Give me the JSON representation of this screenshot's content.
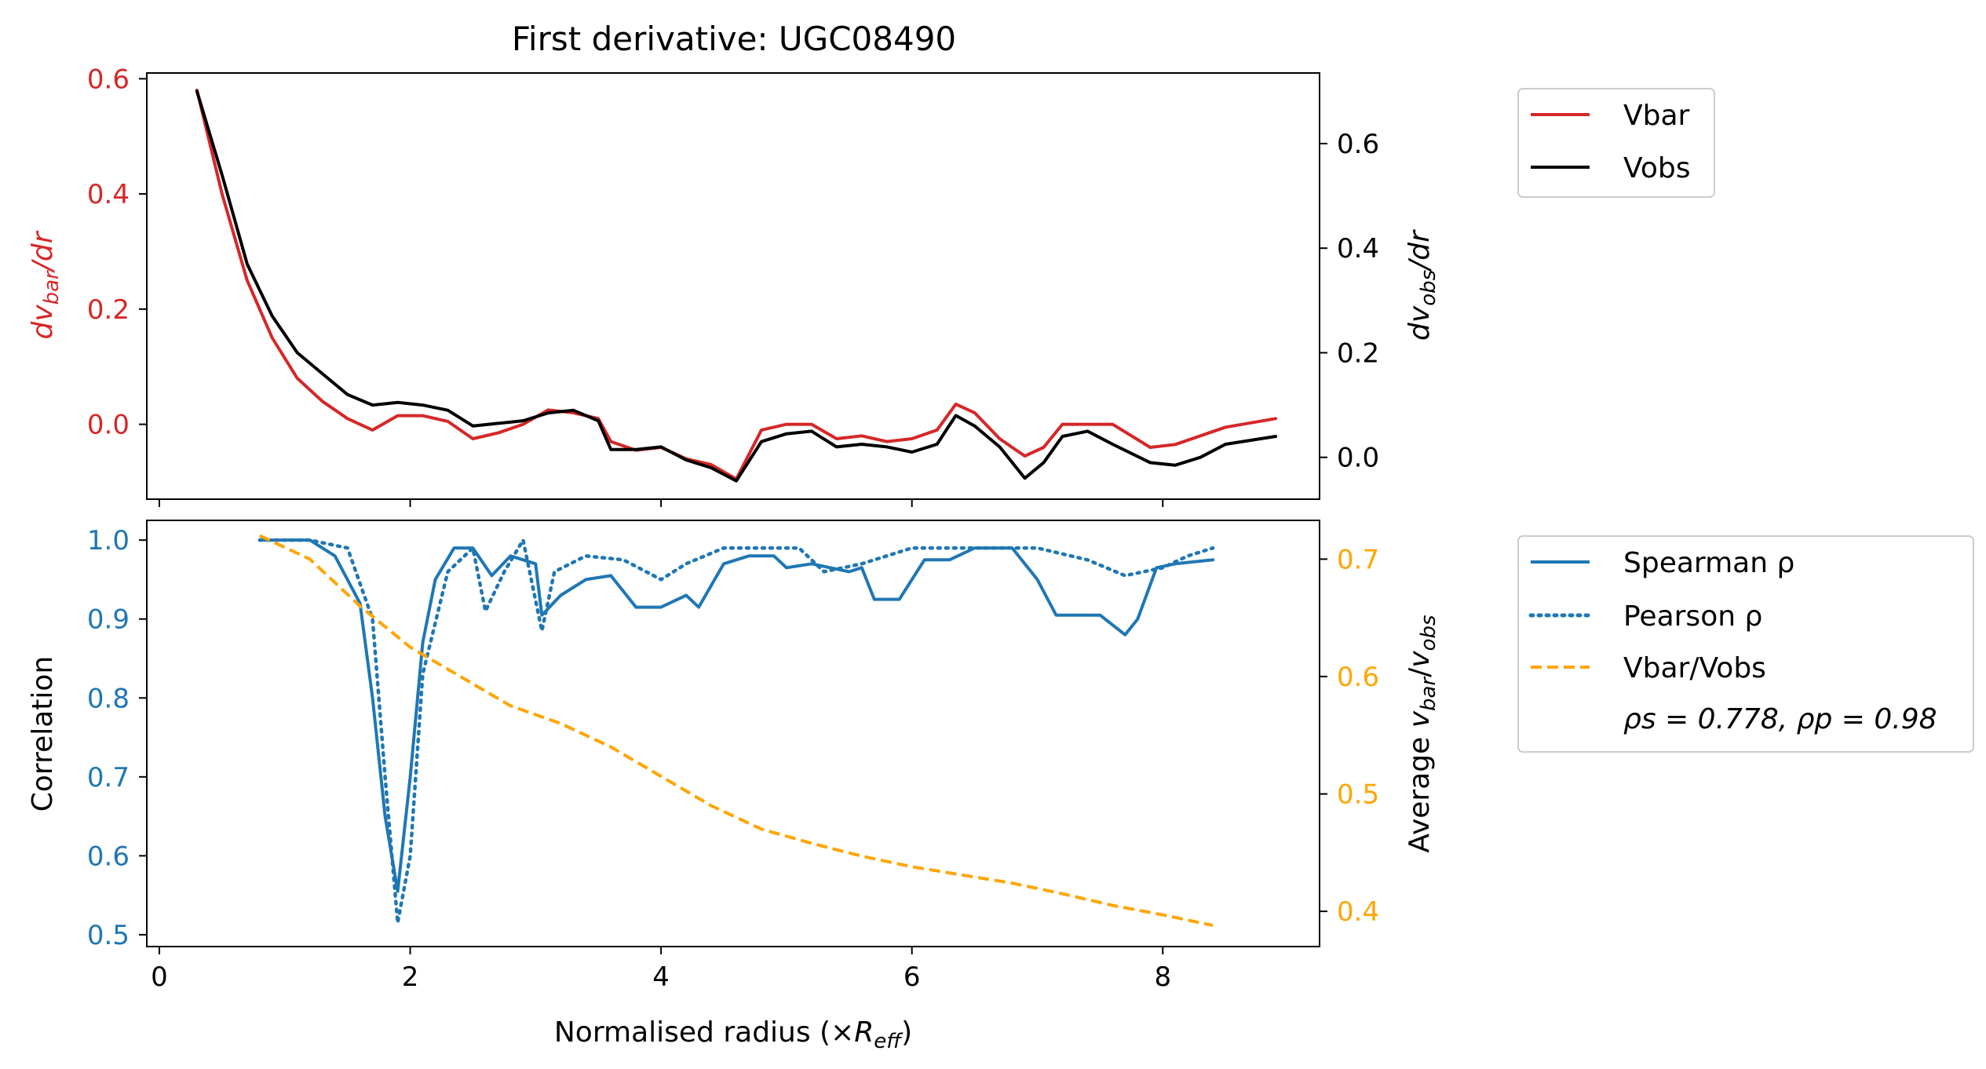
{
  "title": "First derivative: UGC08490",
  "colors": {
    "vbar": "#d62728",
    "vobs": "#000000",
    "correlation": "#1f77b4",
    "ratio": "#ffa500"
  },
  "legends": {
    "top": [
      "Vbar",
      "Vobs"
    ],
    "bottom": [
      "Spearman ρ",
      "Pearson ρ",
      "Vbar/Vobs"
    ],
    "stats": "ρs = 0.778, ρp = 0.98"
  },
  "chart_data": [
    {
      "type": "line",
      "x_range": [
        -0.1,
        9.25
      ],
      "y_left": {
        "label": "dvbar/dr",
        "range": [
          -0.13,
          0.61
        ],
        "ticks": [
          "0.0",
          "0.2",
          "0.4",
          "0.6"
        ]
      },
      "y_right": {
        "label": "dvobs/dr",
        "range": [
          -0.08,
          0.735
        ],
        "ticks": [
          "0.0",
          "0.2",
          "0.4",
          "0.6"
        ]
      },
      "legend_position": "outside-right",
      "series": [
        {
          "name": "Vbar",
          "axis": "left",
          "points": [
            [
              0.3,
              0.58
            ],
            [
              0.5,
              0.4
            ],
            [
              0.7,
              0.25
            ],
            [
              0.9,
              0.15
            ],
            [
              1.1,
              0.08
            ],
            [
              1.3,
              0.04
            ],
            [
              1.5,
              0.01
            ],
            [
              1.7,
              -0.01
            ],
            [
              1.9,
              0.015
            ],
            [
              2.1,
              0.015
            ],
            [
              2.3,
              0.005
            ],
            [
              2.5,
              -0.025
            ],
            [
              2.7,
              -0.015
            ],
            [
              2.9,
              0.0
            ],
            [
              3.1,
              0.025
            ],
            [
              3.3,
              0.02
            ],
            [
              3.5,
              0.01
            ],
            [
              3.6,
              -0.03
            ],
            [
              3.8,
              -0.045
            ],
            [
              4.0,
              -0.04
            ],
            [
              4.2,
              -0.06
            ],
            [
              4.4,
              -0.07
            ],
            [
              4.6,
              -0.095
            ],
            [
              4.8,
              -0.01
            ],
            [
              5.0,
              0.0
            ],
            [
              5.2,
              0.0
            ],
            [
              5.4,
              -0.025
            ],
            [
              5.6,
              -0.02
            ],
            [
              5.8,
              -0.03
            ],
            [
              6.0,
              -0.025
            ],
            [
              6.2,
              -0.01
            ],
            [
              6.35,
              0.035
            ],
            [
              6.5,
              0.02
            ],
            [
              6.7,
              -0.025
            ],
            [
              6.9,
              -0.055
            ],
            [
              7.05,
              -0.04
            ],
            [
              7.2,
              0.0
            ],
            [
              7.4,
              0.0
            ],
            [
              7.6,
              0.0
            ],
            [
              7.9,
              -0.04
            ],
            [
              8.1,
              -0.035
            ],
            [
              8.3,
              -0.02
            ],
            [
              8.5,
              -0.005
            ],
            [
              8.9,
              0.01
            ]
          ]
        },
        {
          "name": "Vobs",
          "axis": "right",
          "points": [
            [
              0.3,
              0.7
            ],
            [
              0.5,
              0.54
            ],
            [
              0.7,
              0.37
            ],
            [
              0.9,
              0.27
            ],
            [
              1.1,
              0.2
            ],
            [
              1.3,
              0.16
            ],
            [
              1.5,
              0.12
            ],
            [
              1.7,
              0.1
            ],
            [
              1.9,
              0.105
            ],
            [
              2.1,
              0.1
            ],
            [
              2.3,
              0.09
            ],
            [
              2.5,
              0.06
            ],
            [
              2.7,
              0.065
            ],
            [
              2.9,
              0.07
            ],
            [
              3.1,
              0.085
            ],
            [
              3.3,
              0.09
            ],
            [
              3.5,
              0.07
            ],
            [
              3.6,
              0.015
            ],
            [
              3.8,
              0.015
            ],
            [
              4.0,
              0.02
            ],
            [
              4.2,
              -0.005
            ],
            [
              4.4,
              -0.02
            ],
            [
              4.6,
              -0.045
            ],
            [
              4.8,
              0.03
            ],
            [
              5.0,
              0.045
            ],
            [
              5.2,
              0.05
            ],
            [
              5.4,
              0.02
            ],
            [
              5.6,
              0.025
            ],
            [
              5.8,
              0.02
            ],
            [
              6.0,
              0.01
            ],
            [
              6.2,
              0.025
            ],
            [
              6.35,
              0.08
            ],
            [
              6.5,
              0.06
            ],
            [
              6.7,
              0.02
            ],
            [
              6.9,
              -0.04
            ],
            [
              7.05,
              -0.01
            ],
            [
              7.2,
              0.04
            ],
            [
              7.4,
              0.05
            ],
            [
              7.6,
              0.025
            ],
            [
              7.9,
              -0.01
            ],
            [
              8.1,
              -0.015
            ],
            [
              8.3,
              0.0
            ],
            [
              8.5,
              0.025
            ],
            [
              8.9,
              0.04
            ]
          ]
        }
      ]
    },
    {
      "type": "line",
      "x_range": [
        -0.1,
        9.25
      ],
      "xlabel": "Normalised radius (×Reff)",
      "x_ticks": [
        "0",
        "2",
        "4",
        "6",
        "8"
      ],
      "y_left": {
        "label": "Correlation",
        "range": [
          0.485,
          1.025
        ],
        "ticks": [
          "0.5",
          "0.6",
          "0.7",
          "0.8",
          "0.9",
          "1.0"
        ]
      },
      "y_right": {
        "label": "Average vbar/vobs",
        "range": [
          0.37,
          0.733
        ],
        "ticks": [
          "0.4",
          "0.5",
          "0.6",
          "0.7"
        ]
      },
      "legend_position": "outside-right",
      "series": [
        {
          "name": "Spearman ρ",
          "axis": "left",
          "style": "solid",
          "points": [
            [
              0.8,
              1.0
            ],
            [
              1.2,
              1.0
            ],
            [
              1.4,
              0.98
            ],
            [
              1.6,
              0.92
            ],
            [
              1.7,
              0.8
            ],
            [
              1.8,
              0.65
            ],
            [
              1.9,
              0.555
            ],
            [
              2.0,
              0.7
            ],
            [
              2.1,
              0.87
            ],
            [
              2.2,
              0.95
            ],
            [
              2.35,
              0.99
            ],
            [
              2.5,
              0.99
            ],
            [
              2.65,
              0.955
            ],
            [
              2.8,
              0.98
            ],
            [
              3.0,
              0.97
            ],
            [
              3.05,
              0.905
            ],
            [
              3.2,
              0.93
            ],
            [
              3.4,
              0.95
            ],
            [
              3.6,
              0.955
            ],
            [
              3.8,
              0.915
            ],
            [
              4.0,
              0.915
            ],
            [
              4.2,
              0.93
            ],
            [
              4.3,
              0.915
            ],
            [
              4.5,
              0.97
            ],
            [
              4.7,
              0.98
            ],
            [
              4.9,
              0.98
            ],
            [
              5.0,
              0.965
            ],
            [
              5.2,
              0.97
            ],
            [
              5.5,
              0.96
            ],
            [
              5.6,
              0.965
            ],
            [
              5.7,
              0.925
            ],
            [
              5.9,
              0.925
            ],
            [
              6.1,
              0.975
            ],
            [
              6.3,
              0.975
            ],
            [
              6.5,
              0.99
            ],
            [
              6.8,
              0.99
            ],
            [
              7.0,
              0.95
            ],
            [
              7.15,
              0.905
            ],
            [
              7.5,
              0.905
            ],
            [
              7.7,
              0.88
            ],
            [
              7.8,
              0.9
            ],
            [
              7.95,
              0.965
            ],
            [
              8.1,
              0.97
            ],
            [
              8.4,
              0.975
            ]
          ]
        },
        {
          "name": "Pearson ρ",
          "axis": "left",
          "style": "dotted",
          "points": [
            [
              0.8,
              1.0
            ],
            [
              1.2,
              1.0
            ],
            [
              1.5,
              0.99
            ],
            [
              1.7,
              0.9
            ],
            [
              1.8,
              0.7
            ],
            [
              1.9,
              0.515
            ],
            [
              2.0,
              0.6
            ],
            [
              2.1,
              0.83
            ],
            [
              2.3,
              0.96
            ],
            [
              2.5,
              0.99
            ],
            [
              2.6,
              0.91
            ],
            [
              2.75,
              0.96
            ],
            [
              2.9,
              1.0
            ],
            [
              3.05,
              0.885
            ],
            [
              3.15,
              0.96
            ],
            [
              3.4,
              0.98
            ],
            [
              3.7,
              0.975
            ],
            [
              4.0,
              0.95
            ],
            [
              4.2,
              0.97
            ],
            [
              4.5,
              0.99
            ],
            [
              4.8,
              0.99
            ],
            [
              5.1,
              0.99
            ],
            [
              5.3,
              0.96
            ],
            [
              5.6,
              0.97
            ],
            [
              5.8,
              0.98
            ],
            [
              6.0,
              0.99
            ],
            [
              6.5,
              0.99
            ],
            [
              7.0,
              0.99
            ],
            [
              7.4,
              0.975
            ],
            [
              7.7,
              0.955
            ],
            [
              8.0,
              0.965
            ],
            [
              8.2,
              0.98
            ],
            [
              8.4,
              0.99
            ]
          ]
        },
        {
          "name": "Vbar/Vobs",
          "axis": "right",
          "style": "dashed",
          "points": [
            [
              0.8,
              0.72
            ],
            [
              1.2,
              0.7
            ],
            [
              1.6,
              0.66
            ],
            [
              2.0,
              0.625
            ],
            [
              2.4,
              0.6
            ],
            [
              2.8,
              0.575
            ],
            [
              3.2,
              0.56
            ],
            [
              3.6,
              0.54
            ],
            [
              4.0,
              0.515
            ],
            [
              4.4,
              0.49
            ],
            [
              4.8,
              0.47
            ],
            [
              5.2,
              0.458
            ],
            [
              5.6,
              0.447
            ],
            [
              6.0,
              0.438
            ],
            [
              6.4,
              0.431
            ],
            [
              6.8,
              0.424
            ],
            [
              7.2,
              0.415
            ],
            [
              7.6,
              0.405
            ],
            [
              8.0,
              0.397
            ],
            [
              8.4,
              0.388
            ]
          ]
        }
      ]
    }
  ]
}
